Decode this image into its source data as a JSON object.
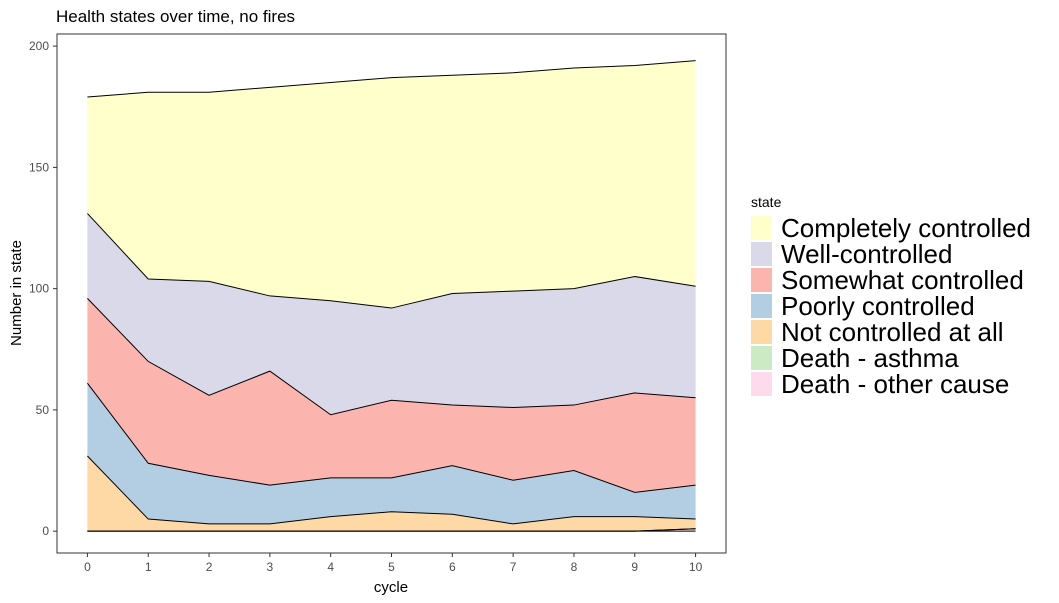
{
  "chart_data": {
    "type": "area",
    "title": "Health states over time, no fires",
    "xlabel": "cycle",
    "ylabel": "Number in state",
    "x": [
      0,
      1,
      2,
      3,
      4,
      5,
      6,
      7,
      8,
      9,
      10
    ],
    "xlim": [
      -0.5,
      10.5
    ],
    "ylim": [
      -9,
      205
    ],
    "x_ticks": [
      0,
      1,
      2,
      3,
      4,
      5,
      6,
      7,
      8,
      9,
      10
    ],
    "y_ticks": [
      0,
      50,
      100,
      150,
      200
    ],
    "grid": false,
    "legend_title": "state",
    "legend_position": "right",
    "stacking": "stacked",
    "series": [
      {
        "name": "Completely controlled",
        "color": "#FFFFCC",
        "values": [
          48,
          77,
          78,
          86,
          90,
          95,
          90,
          90,
          91,
          87,
          93
        ]
      },
      {
        "name": "Well-controlled",
        "color": "#D9D9E9",
        "values": [
          35,
          34,
          47,
          31,
          47,
          38,
          46,
          48,
          48,
          48,
          46
        ]
      },
      {
        "name": "Somewhat controlled",
        "color": "#FBB4AE",
        "values": [
          35,
          42,
          33,
          47,
          26,
          32,
          25,
          30,
          27,
          41,
          36
        ]
      },
      {
        "name": "Poorly controlled",
        "color": "#B3CDE3",
        "values": [
          30,
          23,
          20,
          16,
          16,
          14,
          20,
          18,
          19,
          10,
          14
        ]
      },
      {
        "name": "Not controlled at all",
        "color": "#FED9A6",
        "values": [
          31,
          5,
          3,
          3,
          6,
          8,
          7,
          3,
          6,
          6,
          4
        ]
      },
      {
        "name": "Death - asthma",
        "color": "#CCEBC5",
        "values": [
          0,
          0,
          0,
          0,
          0,
          0,
          0,
          0,
          0,
          0,
          0
        ]
      },
      {
        "name": "Death - other cause",
        "color": "#FDDAEC",
        "values": [
          0,
          0,
          0,
          0,
          0,
          0,
          0,
          0,
          0,
          0,
          1
        ]
      }
    ]
  }
}
